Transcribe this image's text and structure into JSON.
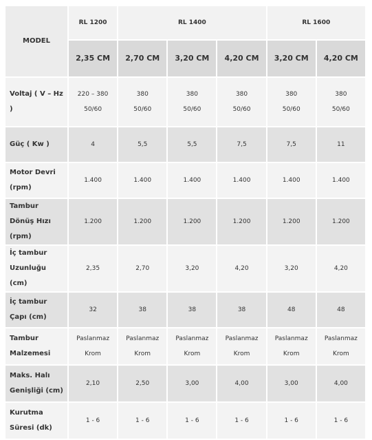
{
  "header": {
    "model_label": "MODEL",
    "models": [
      "RL 1200",
      "RL 1400",
      "RL 1600"
    ],
    "sizes": [
      "2,35 CM",
      "2,70 CM",
      "3,20 CM",
      "4,20 CM",
      "3,20 CM",
      "4,20 CM"
    ]
  },
  "rows": [
    {
      "label": "Voltaj  ( V – Hz )",
      "values": [
        [
          "220 – 380",
          "50/60"
        ],
        [
          "380",
          "50/60"
        ],
        [
          "380",
          "50/60"
        ],
        [
          "380",
          "50/60"
        ],
        [
          "380",
          "50/60"
        ],
        [
          "380",
          "50/60"
        ]
      ]
    },
    {
      "label": "Güç ( Kw )",
      "values": [
        "4",
        "5,5",
        "5,5",
        "7,5",
        "7,5",
        "11"
      ]
    },
    {
      "label": "Motor Devri (rpm)",
      "values": [
        "1.400",
        "1.400",
        "1.400",
        "1.400",
        "1.400",
        "1.400"
      ]
    },
    {
      "label": "Tambur Dönüş Hızı (rpm)",
      "values": [
        "1.200",
        "1.200",
        "1.200",
        "1.200",
        "1.200",
        "1.200"
      ]
    },
    {
      "label": "İç tambur Uzunluğu (cm)",
      "values": [
        "2,35",
        "2,70",
        "3,20",
        "4,20",
        "3,20",
        "4,20"
      ]
    },
    {
      "label": "İç tambur Çapı (cm)",
      "values": [
        "32",
        "38",
        "38",
        "38",
        "48",
        "48"
      ]
    },
    {
      "label": "Tambur Malzemesi",
      "values": [
        [
          "Paslanmaz",
          "Krom"
        ],
        [
          "Paslanmaz",
          "Krom"
        ],
        [
          "Paslanmaz",
          "Krom"
        ],
        [
          "Paslanmaz",
          "Krom"
        ],
        [
          "Paslanmaz",
          "Krom"
        ],
        [
          "Paslanmaz",
          "Krom"
        ]
      ]
    },
    {
      "label": "Maks. Halı Genişliği (cm)",
      "values": [
        "2,10",
        "2,50",
        "3,00",
        "4,00",
        "3,00",
        "4,00"
      ]
    },
    {
      "label": "Kurutma Süresi (dk)",
      "values": [
        "1 - 6",
        "1 - 6",
        "1 - 6",
        "1 - 6",
        "1 - 6",
        "1 - 6"
      ]
    }
  ]
}
